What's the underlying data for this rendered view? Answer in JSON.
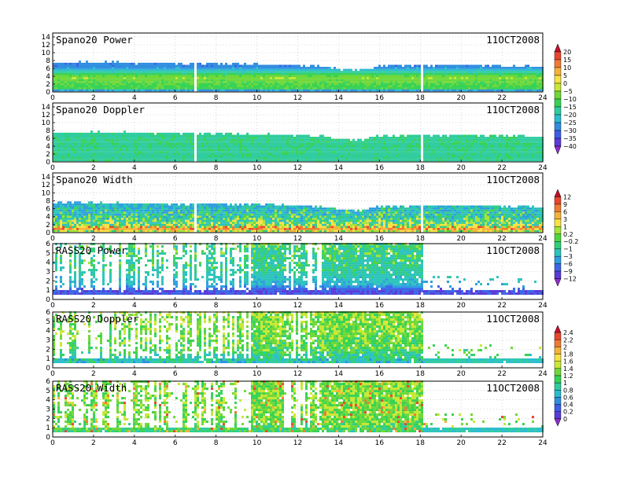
{
  "chart_data": [
    {
      "type": "heatmap",
      "title": "Spano20 Power",
      "date": "11OCT2008",
      "xlim": [
        0,
        24
      ],
      "ylim": [
        0,
        15
      ],
      "xticks": [
        "0",
        "2",
        "4",
        "6",
        "8",
        "10",
        "12",
        "14",
        "16",
        "18",
        "20",
        "22",
        "24"
      ],
      "yticks": [
        "0",
        "2",
        "4",
        "6",
        "8",
        "10",
        "12",
        "14"
      ],
      "grid": true,
      "colorbar": "A",
      "data_top_km": [
        [
          0,
          7.2
        ],
        [
          2,
          7.3
        ],
        [
          6,
          7.0
        ],
        [
          10,
          6.9
        ],
        [
          13,
          6.3
        ],
        [
          14,
          5.6
        ],
        [
          15,
          5.3
        ],
        [
          16,
          6.4
        ],
        [
          18,
          6.5
        ],
        [
          21,
          6.6
        ],
        [
          24,
          6.1
        ]
      ],
      "level_profile": [
        [
          0,
          -30
        ],
        [
          0.6,
          -12
        ],
        [
          2,
          -10
        ],
        [
          3.5,
          -6
        ],
        [
          4.5,
          -15
        ],
        [
          6,
          -28
        ]
      ]
    },
    {
      "type": "heatmap",
      "title": "Spano20 Doppler",
      "date": "11OCT2008",
      "xlim": [
        0,
        24
      ],
      "ylim": [
        0,
        15
      ],
      "xticks": [
        "0",
        "2",
        "4",
        "6",
        "8",
        "10",
        "12",
        "14",
        "16",
        "18",
        "20",
        "22",
        "24"
      ],
      "yticks": [
        "0",
        "2",
        "4",
        "6",
        "8",
        "10",
        "12",
        "14"
      ],
      "grid": true,
      "colorbar": "A",
      "data_top_km": [
        [
          0,
          7.2
        ],
        [
          2,
          7.3
        ],
        [
          6,
          7.0
        ],
        [
          10,
          6.9
        ],
        [
          13,
          6.3
        ],
        [
          14,
          5.6
        ],
        [
          15,
          5.3
        ],
        [
          16,
          6.4
        ],
        [
          18,
          6.5
        ],
        [
          21,
          6.6
        ],
        [
          24,
          6.1
        ]
      ],
      "level_profile": [
        [
          0,
          -17
        ],
        [
          2,
          -17
        ],
        [
          4,
          -16
        ],
        [
          7,
          -17
        ]
      ]
    },
    {
      "type": "heatmap",
      "title": "Spano20 Width",
      "date": "11OCT2008",
      "xlim": [
        0,
        24
      ],
      "ylim": [
        0,
        15
      ],
      "xticks": [
        "0",
        "2",
        "4",
        "6",
        "8",
        "10",
        "12",
        "14",
        "16",
        "18",
        "20",
        "22",
        "24"
      ],
      "yticks": [
        "0",
        "2",
        "4",
        "6",
        "8",
        "10",
        "12",
        "14"
      ],
      "grid": true,
      "colorbar": "B",
      "data_top_km": [
        [
          0,
          7.2
        ],
        [
          2,
          7.3
        ],
        [
          6,
          7.0
        ],
        [
          10,
          6.9
        ],
        [
          13,
          6.3
        ],
        [
          14,
          5.6
        ],
        [
          15,
          5.3
        ],
        [
          16,
          6.4
        ],
        [
          18,
          6.5
        ],
        [
          21,
          6.6
        ],
        [
          24,
          6.1
        ]
      ],
      "level_profile": [
        [
          0,
          0.5
        ],
        [
          0.7,
          5
        ],
        [
          1.2,
          1
        ],
        [
          2,
          -0.2
        ],
        [
          3,
          -1
        ],
        [
          5,
          -2
        ],
        [
          7,
          -3
        ]
      ]
    },
    {
      "type": "heatmap",
      "title": "RASS20 Power",
      "date": "11OCT2008",
      "xlim": [
        0,
        24
      ],
      "ylim": [
        0,
        6
      ],
      "xticks": [
        "0",
        "2",
        "4",
        "6",
        "8",
        "10",
        "12",
        "14",
        "16",
        "18",
        "20",
        "22",
        "24"
      ],
      "yticks": [
        "0",
        "1",
        "2",
        "3",
        "4",
        "5",
        "6"
      ],
      "grid": true,
      "colorbar": "B",
      "level_profile": [
        [
          0,
          -12
        ],
        [
          0.8,
          -10
        ],
        [
          1.5,
          -3
        ],
        [
          3,
          -1
        ],
        [
          6,
          -0.5
        ]
      ]
    },
    {
      "type": "heatmap",
      "title": "RASS20 Doppler",
      "date": "11OCT2008",
      "xlim": [
        0,
        24
      ],
      "ylim": [
        0,
        6
      ],
      "xticks": [
        "0",
        "2",
        "4",
        "6",
        "8",
        "10",
        "12",
        "14",
        "16",
        "18",
        "20",
        "22",
        "24"
      ],
      "yticks": [
        "0",
        "1",
        "2",
        "3",
        "4",
        "5",
        "6"
      ],
      "grid": true,
      "colorbar": "C",
      "level_profile": [
        [
          0,
          0.7
        ],
        [
          1,
          0.9
        ],
        [
          2,
          1.2
        ],
        [
          4,
          1.3
        ],
        [
          6,
          1.35
        ]
      ]
    },
    {
      "type": "heatmap",
      "title": "RASS20 Width",
      "date": "11OCT2008",
      "xlim": [
        0,
        24
      ],
      "ylim": [
        0,
        6
      ],
      "xticks": [
        "0",
        "2",
        "4",
        "6",
        "8",
        "10",
        "12",
        "14",
        "16",
        "18",
        "20",
        "22",
        "24"
      ],
      "yticks": [
        "0",
        "1",
        "2",
        "3",
        "4",
        "5",
        "6"
      ],
      "grid": true,
      "colorbar": "C",
      "level_profile": [
        [
          0,
          0.9
        ],
        [
          1,
          1.2
        ],
        [
          2,
          1.3
        ],
        [
          6,
          1.3
        ]
      ]
    }
  ],
  "rass_time_coverage": {
    "dense_column_ranges_h": [
      [
        9.7,
        11.3
      ],
      [
        13.1,
        18.1
      ]
    ],
    "sparse_column_ranges_h": [
      [
        0,
        9.7
      ],
      [
        11.3,
        13.1
      ]
    ],
    "low_level_only_after_h": 18.1
  },
  "colorbars": {
    "A": {
      "labels": [
        "20",
        "15",
        "10",
        "5",
        "0",
        "−5",
        "−10",
        "−15",
        "−20",
        "−25",
        "−30",
        "−35",
        "−40"
      ],
      "colors": [
        "#c2102c",
        "#e8462e",
        "#f07a32",
        "#f6b238",
        "#f7e244",
        "#c8e834",
        "#6ed838",
        "#35d254",
        "#2ecc9e",
        "#2bbcd0",
        "#2f8ee0",
        "#3d5ee6",
        "#5b3ad8",
        "#8c2ecc"
      ]
    },
    "B": {
      "labels": [
        "12",
        "9",
        "6",
        "3",
        "1",
        "0.2",
        "−0.2",
        "−1",
        "−3",
        "−6",
        "−9",
        "−12"
      ],
      "colors": [
        "#c2102c",
        "#e8462e",
        "#f07a32",
        "#f6b238",
        "#f7e244",
        "#a6e436",
        "#4ed63e",
        "#33ce78",
        "#2cc4bc",
        "#2e9ee0",
        "#3b66e6",
        "#5a3ad8",
        "#8c2ecc"
      ]
    },
    "C": {
      "labels": [
        "2.4",
        "2.2",
        "2",
        "1.8",
        "1.6",
        "1.4",
        "1.2",
        "1",
        "0.8",
        "0.6",
        "0.4",
        "0.2",
        "0"
      ],
      "colors": [
        "#c2102c",
        "#e8462e",
        "#f07a32",
        "#f6b238",
        "#f7e244",
        "#c8e834",
        "#6ed838",
        "#35d254",
        "#2ecc9e",
        "#2bbcd0",
        "#2f8ee0",
        "#3d5ee6",
        "#5b3ad8",
        "#8c2ecc"
      ]
    }
  }
}
